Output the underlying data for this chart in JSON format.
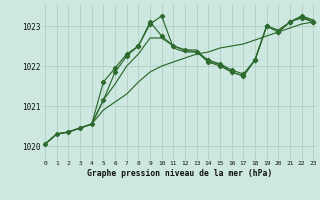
{
  "background_color": "#cce8e0",
  "grid_color": "#b0c8c0",
  "line_color": "#2d6a2d",
  "title": "Graphe pression niveau de la mer (hPa)",
  "ylabel_ticks": [
    1020,
    1021,
    1022,
    1023
  ],
  "xticks": [
    0,
    1,
    2,
    3,
    4,
    5,
    6,
    7,
    8,
    9,
    10,
    11,
    12,
    13,
    14,
    15,
    16,
    17,
    18,
    19,
    20,
    21,
    22,
    23
  ],
  "xlim": [
    -0.3,
    23.3
  ],
  "ylim": [
    1019.65,
    1023.55
  ],
  "series": [
    {
      "x": [
        0,
        1,
        2,
        3,
        4,
        5,
        6,
        7,
        8,
        9,
        10,
        11,
        12,
        13,
        14,
        15,
        16,
        17,
        18,
        19,
        20,
        21,
        22,
        23
      ],
      "y": [
        1020.05,
        1020.3,
        1020.35,
        1020.45,
        1020.55,
        1020.9,
        1021.1,
        1021.3,
        1021.6,
        1021.85,
        1022.0,
        1022.1,
        1022.2,
        1022.3,
        1022.35,
        1022.45,
        1022.5,
        1022.55,
        1022.65,
        1022.75,
        1022.85,
        1022.95,
        1023.05,
        1023.1
      ],
      "marker_x": [],
      "marker_y": []
    },
    {
      "x": [
        0,
        1,
        2,
        3,
        4,
        5,
        6,
        7,
        8,
        9,
        10,
        11,
        12,
        13,
        14,
        15,
        16,
        17,
        18,
        19,
        20,
        21,
        22,
        23
      ],
      "y": [
        1020.05,
        1020.3,
        1020.35,
        1020.45,
        1020.55,
        1021.15,
        1021.85,
        1022.25,
        1022.5,
        1023.1,
        1022.75,
        1022.5,
        1022.4,
        1022.35,
        1022.15,
        1022.05,
        1021.9,
        1021.8,
        1022.15,
        1023.0,
        1022.85,
        1023.1,
        1023.25,
        1023.1
      ],
      "marker_x": [
        0,
        1,
        2,
        3,
        4,
        5,
        6,
        7,
        8,
        9,
        10,
        11,
        12,
        13,
        14,
        15,
        16,
        17,
        18,
        19,
        20,
        21,
        22,
        23
      ],
      "marker_y": [
        1020.05,
        1020.3,
        1020.35,
        1020.45,
        1020.55,
        1021.15,
        1021.85,
        1022.25,
        1022.5,
        1023.1,
        1022.75,
        1022.5,
        1022.4,
        1022.35,
        1022.15,
        1022.05,
        1021.9,
        1021.8,
        1022.15,
        1023.0,
        1022.85,
        1023.1,
        1023.25,
        1023.1
      ]
    },
    {
      "x": [
        0,
        1,
        2,
        3,
        4,
        5,
        6,
        7,
        8,
        9,
        10,
        11,
        12,
        13,
        14,
        15,
        16,
        17,
        18,
        19,
        20,
        21,
        22,
        23
      ],
      "y": [
        1020.05,
        1020.3,
        1020.35,
        1020.45,
        1020.55,
        1021.6,
        1021.95,
        1022.3,
        1022.5,
        1023.05,
        1023.25,
        1022.45,
        1022.35,
        1022.35,
        1022.1,
        1022.05,
        1021.85,
        1021.75,
        1022.15,
        1023.0,
        1022.9,
        1023.1,
        1023.25,
        1023.15
      ],
      "marker_x": [
        5,
        6,
        7,
        8,
        9,
        10
      ],
      "marker_y": [
        1021.6,
        1021.95,
        1022.3,
        1022.5,
        1023.05,
        1023.25
      ]
    },
    {
      "x": [
        0,
        1,
        2,
        3,
        4,
        5,
        6,
        7,
        8,
        9,
        10,
        11,
        12,
        13,
        14,
        15,
        16,
        17,
        18,
        19,
        20,
        21,
        22,
        23
      ],
      "y": [
        1020.05,
        1020.3,
        1020.35,
        1020.45,
        1020.55,
        1021.15,
        1021.55,
        1022.0,
        1022.3,
        1022.7,
        1022.7,
        1022.5,
        1022.4,
        1022.4,
        1022.1,
        1022.0,
        1021.85,
        1021.75,
        1022.15,
        1023.0,
        1022.85,
        1023.1,
        1023.2,
        1023.1
      ],
      "marker_x": [
        14,
        15,
        16,
        17,
        18,
        19,
        20,
        21,
        22,
        23
      ],
      "marker_y": [
        1022.1,
        1022.0,
        1021.85,
        1021.75,
        1022.15,
        1023.0,
        1022.85,
        1023.1,
        1023.2,
        1023.1
      ]
    }
  ]
}
